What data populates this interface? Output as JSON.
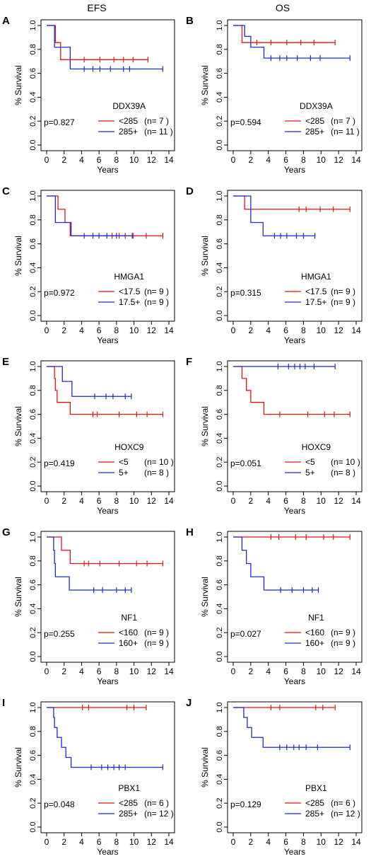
{
  "column_titles": [
    "EFS",
    "OS"
  ],
  "colors": {
    "low": "#e8120f",
    "high": "#1a2ad8",
    "axis": "#000000"
  },
  "chart_data": [
    {
      "panel": "A",
      "type": "line",
      "column_title": "EFS",
      "xlabel": "Years",
      "ylabel": "% Survival",
      "xlim": [
        0,
        14
      ],
      "ylim": [
        0,
        1
      ],
      "xticks": [
        0,
        2,
        4,
        6,
        8,
        10,
        12,
        14
      ],
      "yticks": [
        "0.0",
        "0.2",
        "0.4",
        "0.6",
        "0.8",
        "1.0"
      ],
      "gene": "DDX39A",
      "p_value": "p=0.827",
      "legend_position": "bottom-right",
      "series": [
        {
          "name": "<285",
          "n_label": "(n= 7 )",
          "color_key": "low",
          "steps": [
            [
              0,
              1.0
            ],
            [
              1.0,
              0.857
            ],
            [
              1.6,
              0.714
            ],
            [
              11.6,
              0.714
            ]
          ],
          "censored": [
            2.7,
            4.3,
            6.1,
            7.7,
            8.8,
            9.9,
            11.6
          ]
        },
        {
          "name": "285+",
          "n_label": "(n= 11 )",
          "color_key": "high",
          "steps": [
            [
              0,
              1.0
            ],
            [
              0.9,
              0.818
            ],
            [
              2.7,
              0.636
            ],
            [
              13.3,
              0.636
            ]
          ],
          "censored": [
            4.3,
            5.3,
            6.1,
            7.3,
            8.8,
            9.5,
            13.3
          ]
        }
      ]
    },
    {
      "panel": "B",
      "type": "line",
      "column_title": "OS",
      "xlabel": "Years",
      "ylabel": "% Survival",
      "xlim": [
        0,
        14
      ],
      "ylim": [
        0,
        1
      ],
      "xticks": [
        0,
        2,
        4,
        6,
        8,
        10,
        12,
        14
      ],
      "yticks": [
        "0.0",
        "0.2",
        "0.4",
        "0.6",
        "0.8",
        "1.0"
      ],
      "gene": "DDX39A",
      "p_value": "p=0.594",
      "legend_position": "bottom-right",
      "series": [
        {
          "name": "<285",
          "n_label": "(n= 7 )",
          "color_key": "low",
          "steps": [
            [
              0,
              1.0
            ],
            [
              1.0,
              0.857
            ],
            [
              11.6,
              0.857
            ]
          ],
          "censored": [
            2.7,
            4.3,
            6.1,
            7.7,
            9.2,
            11.6
          ]
        },
        {
          "name": "285+",
          "n_label": "(n= 11 )",
          "color_key": "high",
          "steps": [
            [
              0,
              1.0
            ],
            [
              1.3,
              0.909
            ],
            [
              2.0,
              0.818
            ],
            [
              3.5,
              0.727
            ],
            [
              13.3,
              0.727
            ]
          ],
          "censored": [
            4.3,
            5.3,
            6.1,
            7.3,
            8.8,
            9.9,
            13.3
          ]
        }
      ]
    },
    {
      "panel": "C",
      "type": "line",
      "column_title": "",
      "xlabel": "Years",
      "ylabel": "% Survival",
      "xlim": [
        0,
        14
      ],
      "ylim": [
        0,
        1
      ],
      "xticks": [
        0,
        2,
        4,
        6,
        8,
        10,
        12,
        14
      ],
      "yticks": [
        "0.0",
        "0.2",
        "0.4",
        "0.6",
        "0.8",
        "1.0"
      ],
      "gene": "HMGA1",
      "p_value": "p=0.972",
      "legend_position": "bottom-right",
      "series": [
        {
          "name": "<17.5",
          "n_label": "(n= 9 )",
          "color_key": "low",
          "steps": [
            [
              0,
              1.0
            ],
            [
              1.3,
              0.889
            ],
            [
              2.1,
              0.778
            ],
            [
              2.7,
              0.667
            ],
            [
              13.3,
              0.667
            ]
          ],
          "censored": [
            7.5,
            8.3,
            9.0,
            9.9,
            11.4,
            13.3
          ]
        },
        {
          "name": "17.5+",
          "n_label": "(n= 9 )",
          "color_key": "high",
          "steps": [
            [
              0,
              1.0
            ],
            [
              1.0,
              0.778
            ],
            [
              2.8,
              0.667
            ],
            [
              9.8,
              0.667
            ]
          ],
          "censored": [
            4.3,
            5.3,
            6.0,
            6.9,
            8.0,
            9.8
          ]
        }
      ]
    },
    {
      "panel": "D",
      "type": "line",
      "column_title": "",
      "xlabel": "Years",
      "ylabel": "% Survival",
      "xlim": [
        0,
        14
      ],
      "ylim": [
        0,
        1
      ],
      "xticks": [
        0,
        2,
        4,
        6,
        8,
        10,
        12,
        14
      ],
      "yticks": [
        "0.0",
        "0.2",
        "0.4",
        "0.6",
        "0.8",
        "1.0"
      ],
      "gene": "HMGA1",
      "p_value": "p=0.315",
      "legend_position": "bottom-right",
      "series": [
        {
          "name": "<17.5",
          "n_label": "(n= 9 )",
          "color_key": "low",
          "steps": [
            [
              0,
              1.0
            ],
            [
              1.3,
              0.889
            ],
            [
              13.3,
              0.889
            ]
          ],
          "censored": [
            7.5,
            8.3,
            9.9,
            11.4,
            13.3
          ]
        },
        {
          "name": "17.5+",
          "n_label": "(n= 9 )",
          "color_key": "high",
          "steps": [
            [
              0,
              1.0
            ],
            [
              2.0,
              0.778
            ],
            [
              3.4,
              0.667
            ],
            [
              9.3,
              0.667
            ]
          ],
          "censored": [
            4.7,
            5.4,
            6.1,
            7.2,
            8.0,
            9.3
          ]
        }
      ]
    },
    {
      "panel": "E",
      "type": "line",
      "column_title": "",
      "xlabel": "Years",
      "ylabel": "% Survival",
      "xlim": [
        0,
        14
      ],
      "ylim": [
        0,
        1
      ],
      "xticks": [
        0,
        2,
        4,
        6,
        8,
        10,
        12,
        14
      ],
      "yticks": [
        "0.0",
        "0.2",
        "0.4",
        "0.6",
        "0.8",
        "1.0"
      ],
      "gene": "HOXC9",
      "p_value": "p=0.419",
      "legend_position": "bottom-right",
      "series": [
        {
          "name": "<5",
          "n_label": "(n= 10 )",
          "color_key": "low",
          "steps": [
            [
              0,
              1.0
            ],
            [
              0.9,
              0.9
            ],
            [
              1.0,
              0.8
            ],
            [
              1.2,
              0.7
            ],
            [
              2.7,
              0.6
            ],
            [
              13.3,
              0.6
            ]
          ],
          "censored": [
            5.3,
            5.8,
            8.3,
            10.3,
            11.5,
            13.3
          ]
        },
        {
          "name": "5+",
          "n_label": "(n= 8 )",
          "color_key": "high",
          "steps": [
            [
              0,
              1.0
            ],
            [
              1.8,
              0.875
            ],
            [
              2.9,
              0.75
            ],
            [
              9.7,
              0.75
            ]
          ],
          "censored": [
            5.5,
            6.8,
            7.6,
            9.0,
            9.7
          ]
        }
      ]
    },
    {
      "panel": "F",
      "type": "line",
      "column_title": "",
      "xlabel": "Years",
      "ylabel": "% Survival",
      "xlim": [
        0,
        14
      ],
      "ylim": [
        0,
        1
      ],
      "xticks": [
        0,
        2,
        4,
        6,
        8,
        10,
        12,
        14
      ],
      "yticks": [
        "0.0",
        "0.2",
        "0.4",
        "0.6",
        "0.8",
        "1.0"
      ],
      "gene": "HOXC9",
      "p_value": "p=0.051",
      "legend_position": "bottom-right",
      "series": [
        {
          "name": "<5",
          "n_label": "(n= 10 )",
          "color_key": "low",
          "steps": [
            [
              0,
              1.0
            ],
            [
              1.0,
              0.9
            ],
            [
              1.5,
              0.8
            ],
            [
              2.0,
              0.7
            ],
            [
              3.5,
              0.6
            ],
            [
              13.3,
              0.6
            ]
          ],
          "censored": [
            5.3,
            8.5,
            10.4,
            11.5,
            13.3
          ]
        },
        {
          "name": "5+",
          "n_label": "(n= 8 )",
          "color_key": "high",
          "steps": [
            [
              0,
              1.0
            ],
            [
              11.6,
              1.0
            ]
          ],
          "censored": [
            5.1,
            6.3,
            7.0,
            7.6,
            8.2,
            9.2,
            11.6
          ]
        }
      ]
    },
    {
      "panel": "G",
      "type": "line",
      "column_title": "",
      "xlabel": "Years",
      "ylabel": "% Survival",
      "xlim": [
        0,
        14
      ],
      "ylim": [
        0,
        1
      ],
      "xticks": [
        0,
        2,
        4,
        6,
        8,
        10,
        12,
        14
      ],
      "yticks": [
        "0.0",
        "0.2",
        "0.4",
        "0.6",
        "0.8",
        "1.0"
      ],
      "gene": "NF1",
      "p_value": "p=0.255",
      "legend_position": "bottom-right",
      "series": [
        {
          "name": "<160",
          "n_label": "(n= 9 )",
          "color_key": "low",
          "steps": [
            [
              0,
              1.0
            ],
            [
              1.7,
              0.889
            ],
            [
              2.7,
              0.778
            ],
            [
              13.3,
              0.778
            ]
          ],
          "censored": [
            4.3,
            4.8,
            6.1,
            8.3,
            10.3,
            11.5,
            13.3
          ]
        },
        {
          "name": "160+",
          "n_label": "(n= 9 )",
          "color_key": "high",
          "steps": [
            [
              0,
              1.0
            ],
            [
              0.8,
              0.889
            ],
            [
              0.9,
              0.778
            ],
            [
              1.0,
              0.667
            ],
            [
              2.6,
              0.556
            ],
            [
              9.7,
              0.556
            ]
          ],
          "censored": [
            5.4,
            6.4,
            8.0,
            9.0,
            9.7
          ]
        }
      ]
    },
    {
      "panel": "H",
      "type": "line",
      "column_title": "",
      "xlabel": "Years",
      "ylabel": "% Survival",
      "xlim": [
        0,
        14
      ],
      "ylim": [
        0,
        1
      ],
      "xticks": [
        0,
        2,
        4,
        6,
        8,
        10,
        12,
        14
      ],
      "yticks": [
        "0.0",
        "0.2",
        "0.4",
        "0.6",
        "0.8",
        "1.0"
      ],
      "gene": "NF1",
      "p_value": "p=0.027",
      "legend_position": "bottom-right",
      "series": [
        {
          "name": "<160",
          "n_label": "(n= 9 )",
          "color_key": "low",
          "steps": [
            [
              0,
              1.0
            ],
            [
              13.3,
              1.0
            ]
          ],
          "censored": [
            4.3,
            5.2,
            7.1,
            8.3,
            10.3,
            11.4,
            13.3
          ]
        },
        {
          "name": "160+",
          "n_label": "(n= 9 )",
          "color_key": "high",
          "steps": [
            [
              0,
              1.0
            ],
            [
              1.0,
              0.889
            ],
            [
              1.5,
              0.778
            ],
            [
              2.0,
              0.667
            ],
            [
              3.5,
              0.556
            ],
            [
              9.7,
              0.556
            ]
          ],
          "censored": [
            5.4,
            6.7,
            8.0,
            9.0,
            9.7
          ]
        }
      ]
    },
    {
      "panel": "I",
      "type": "line",
      "column_title": "",
      "xlabel": "Years",
      "ylabel": "% Survival",
      "xlim": [
        0,
        14
      ],
      "ylim": [
        0,
        1
      ],
      "xticks": [
        0,
        2,
        4,
        6,
        8,
        10,
        12,
        14
      ],
      "yticks": [
        "0.0",
        "0.2",
        "0.4",
        "0.6",
        "0.8",
        "1.0"
      ],
      "gene": "PBX1",
      "p_value": "p=0.048",
      "legend_position": "bottom-right",
      "series": [
        {
          "name": "<285",
          "n_label": "(n= 6 )",
          "color_key": "low",
          "steps": [
            [
              0,
              1.0
            ],
            [
              11.4,
              1.0
            ]
          ],
          "censored": [
            4.1,
            4.8,
            9.2,
            10.0,
            11.4
          ]
        },
        {
          "name": "285+",
          "n_label": "(n= 12 )",
          "color_key": "high",
          "steps": [
            [
              0,
              1.0
            ],
            [
              0.8,
              0.917
            ],
            [
              0.9,
              0.833
            ],
            [
              1.2,
              0.75
            ],
            [
              1.7,
              0.667
            ],
            [
              2.2,
              0.583
            ],
            [
              2.8,
              0.5
            ],
            [
              13.3,
              0.5
            ]
          ],
          "censored": [
            5.1,
            6.3,
            7.0,
            7.7,
            8.3,
            9.0,
            13.3
          ]
        }
      ]
    },
    {
      "panel": "J",
      "type": "line",
      "column_title": "",
      "xlabel": "Years",
      "ylabel": "% Survival",
      "xlim": [
        0,
        14
      ],
      "ylim": [
        0,
        1
      ],
      "xticks": [
        0,
        2,
        4,
        6,
        8,
        10,
        12,
        14
      ],
      "yticks": [
        "0.0",
        "0.2",
        "0.4",
        "0.6",
        "0.8",
        "1.0"
      ],
      "gene": "PBX1",
      "p_value": "p=0.129",
      "legend_position": "bottom-right",
      "series": [
        {
          "name": "<285",
          "n_label": "(n= 6 )",
          "color_key": "low",
          "steps": [
            [
              0,
              1.0
            ],
            [
              11.6,
              1.0
            ]
          ],
          "censored": [
            4.3,
            5.3,
            9.4,
            10.2,
            11.6
          ]
        },
        {
          "name": "285+",
          "n_label": "(n= 12 )",
          "color_key": "high",
          "steps": [
            [
              0,
              1.0
            ],
            [
              1.2,
              0.917
            ],
            [
              1.6,
              0.833
            ],
            [
              2.1,
              0.75
            ],
            [
              3.4,
              0.667
            ],
            [
              13.3,
              0.667
            ]
          ],
          "censored": [
            5.3,
            6.1,
            6.9,
            7.5,
            8.3,
            9.6,
            13.3
          ]
        }
      ]
    }
  ]
}
